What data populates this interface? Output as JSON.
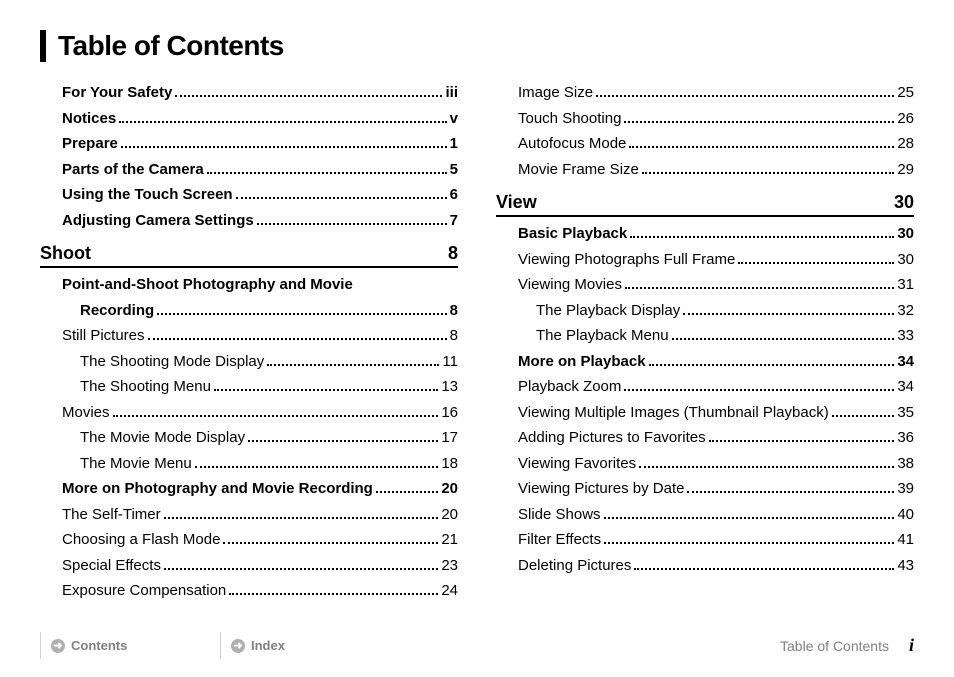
{
  "title": "Table of Contents",
  "col1": {
    "pre": [
      {
        "label": "For Your Safety",
        "page": "iii",
        "bold": true,
        "indent": 0
      },
      {
        "label": "Notices",
        "page": "v",
        "bold": true,
        "indent": 0
      },
      {
        "label": "Prepare",
        "page": "1",
        "bold": true,
        "indent": 0
      },
      {
        "label": "Parts of the Camera",
        "page": "5",
        "bold": true,
        "indent": 0
      },
      {
        "label": "Using the Touch Screen",
        "page": "6",
        "bold": true,
        "indent": 0
      },
      {
        "label": "Adjusting Camera Settings",
        "page": "7",
        "bold": true,
        "indent": 0
      }
    ],
    "section": {
      "title": "Shoot",
      "page": "8"
    },
    "post_wrap": {
      "line1": "Point-and-Shoot Photography and Movie",
      "line2": "Recording",
      "page": "8"
    },
    "post": [
      {
        "label": "Still Pictures",
        "page": "8",
        "bold": false,
        "indent": 1
      },
      {
        "label": "The Shooting Mode Display",
        "page": "11",
        "bold": false,
        "indent": 2
      },
      {
        "label": "The Shooting Menu",
        "page": "13",
        "bold": false,
        "indent": 2
      },
      {
        "label": "Movies",
        "page": "16",
        "bold": false,
        "indent": 1
      },
      {
        "label": "The Movie Mode Display",
        "page": "17",
        "bold": false,
        "indent": 2
      },
      {
        "label": "The Movie Menu",
        "page": "18",
        "bold": false,
        "indent": 2
      },
      {
        "label": "More on Photography and Movie Recording",
        "page": "20",
        "bold": true,
        "indent": 1
      },
      {
        "label": "The Self-Timer",
        "page": "20",
        "bold": false,
        "indent": 1
      },
      {
        "label": "Choosing a Flash Mode",
        "page": "21",
        "bold": false,
        "indent": 1
      },
      {
        "label": "Special Effects",
        "page": "23",
        "bold": false,
        "indent": 1
      },
      {
        "label": "Exposure Compensation",
        "page": "24",
        "bold": false,
        "indent": 1
      }
    ]
  },
  "col2": {
    "pre": [
      {
        "label": "Image Size",
        "page": "25",
        "bold": false,
        "indent": 1
      },
      {
        "label": "Touch Shooting",
        "page": "26",
        "bold": false,
        "indent": 1
      },
      {
        "label": "Autofocus Mode",
        "page": "28",
        "bold": false,
        "indent": 1
      },
      {
        "label": "Movie Frame Size",
        "page": "29",
        "bold": false,
        "indent": 1
      }
    ],
    "section": {
      "title": "View",
      "page": "30"
    },
    "post": [
      {
        "label": "Basic Playback",
        "page": "30",
        "bold": true,
        "indent": 1
      },
      {
        "label": "Viewing Photographs Full Frame",
        "page": "30",
        "bold": false,
        "indent": 1
      },
      {
        "label": "Viewing Movies",
        "page": "31",
        "bold": false,
        "indent": 1
      },
      {
        "label": "The Playback Display",
        "page": "32",
        "bold": false,
        "indent": 2
      },
      {
        "label": "The Playback Menu",
        "page": "33",
        "bold": false,
        "indent": 2
      },
      {
        "label": "More on Playback",
        "page": "34",
        "bold": true,
        "indent": 1
      },
      {
        "label": "Playback Zoom",
        "page": "34",
        "bold": false,
        "indent": 1
      },
      {
        "label": "Viewing Multiple Images (Thumbnail Playback)",
        "page": "35",
        "bold": false,
        "indent": 1
      },
      {
        "label": "Adding Pictures to Favorites",
        "page": "36",
        "bold": false,
        "indent": 1
      },
      {
        "label": "Viewing Favorites",
        "page": "38",
        "bold": false,
        "indent": 1
      },
      {
        "label": "Viewing Pictures by Date",
        "page": "39",
        "bold": false,
        "indent": 1
      },
      {
        "label": "Slide Shows",
        "page": "40",
        "bold": false,
        "indent": 1
      },
      {
        "label": "Filter Effects",
        "page": "41",
        "bold": false,
        "indent": 1
      },
      {
        "label": "Deleting Pictures",
        "page": "43",
        "bold": false,
        "indent": 1
      }
    ]
  },
  "footer": {
    "contents": "Contents",
    "index": "Index",
    "page_label": "Table of Contents",
    "page_num": "i"
  },
  "colors": {
    "text": "#000000",
    "muted": "#808080",
    "divider": "#d0d0d0",
    "icon_bg": "#b0b0b0"
  }
}
